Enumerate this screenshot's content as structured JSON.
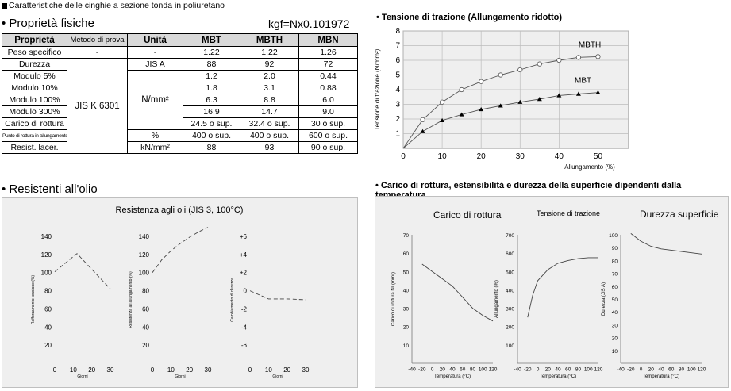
{
  "header": {
    "title": "Caratteristiche delle cinghie a sezione tonda in poliuretano"
  },
  "props_section": {
    "title": "Proprietà fisiche",
    "unit_note": "kgf=Nx0.101972"
  },
  "table": {
    "headers": [
      "Proprietà",
      "Metodo di prova",
      "Unità",
      "MBT",
      "MBTH",
      "MBN"
    ],
    "method_jis": "JIS  K  6301",
    "unit_mpa": "N/mm²",
    "rows": [
      {
        "prop": "Peso specifico",
        "method": "-",
        "unit": "-",
        "mbt": "1.22",
        "mbth": "1.22",
        "mbn": "1.26"
      },
      {
        "prop": "Durezza",
        "unit": "JIS A",
        "mbt": "88",
        "mbth": "92",
        "mbn": "72"
      },
      {
        "prop": "Modulo 5%",
        "mbt": "1.2",
        "mbth": "2.0",
        "mbn": "0.44"
      },
      {
        "prop": "Modulo 10%",
        "mbt": "1.8",
        "mbth": "3.1",
        "mbn": "0.88"
      },
      {
        "prop": "Modulo 100%",
        "mbt": "6.3",
        "mbth": "8.8",
        "mbn": "6.0"
      },
      {
        "prop": "Modulo 300%",
        "mbt": "16.9",
        "mbth": "14.7",
        "mbn": "9.0"
      },
      {
        "prop": "Carico di rottura",
        "mbt": "24.5 o sup.",
        "mbth": "32.4 o sup.",
        "mbn": "30 o sup."
      },
      {
        "prop": "Punto di rottura in allungamento",
        "unit": "%",
        "mbt": "400 o sup.",
        "mbth": "400 o sup.",
        "mbn": "600 o sup."
      },
      {
        "prop": "Resist. lacer.",
        "unit": "kN/mm²",
        "mbt": "88",
        "mbth": "93",
        "mbn": "90 o sup."
      }
    ]
  },
  "oil_section": {
    "title": "Resistenti all'olio",
    "panel_title": "Resistenza agli oli (JIS 3, 100°C)"
  },
  "temp_section": {
    "title": "Carico di rottura, estensibilità e durezza della superficie dipendenti dalla temperatura",
    "sub1": "Carico di rottura",
    "sub2": "Tensione di trazione",
    "sub3": "Durezza superficie"
  },
  "chart_data": [
    {
      "id": "tensile",
      "type": "line",
      "title": "Tensione di trazione (Allungamento ridotto)",
      "xlabel": "Allungamento (%)",
      "ylabel": "Tensione di trazione (N/mm²)",
      "xlim": [
        0,
        55
      ],
      "ylim": [
        0,
        8
      ],
      "xticks": [
        0,
        10,
        20,
        30,
        40,
        50
      ],
      "yticks": [
        1,
        2,
        3,
        4,
        5,
        6,
        7,
        8
      ],
      "series": [
        {
          "name": "MBTH",
          "marker": "circle",
          "x": [
            0,
            5,
            10,
            15,
            20,
            25,
            30,
            35,
            40,
            45,
            50
          ],
          "y": [
            0,
            1.95,
            3.15,
            4.0,
            4.55,
            5.0,
            5.35,
            5.75,
            6.0,
            6.2,
            6.25
          ]
        },
        {
          "name": "MBT",
          "marker": "triangle",
          "x": [
            0,
            5,
            10,
            15,
            20,
            25,
            30,
            35,
            40,
            45,
            50
          ],
          "y": [
            0,
            1.15,
            1.9,
            2.3,
            2.65,
            2.9,
            3.15,
            3.35,
            3.6,
            3.7,
            3.8
          ]
        }
      ]
    },
    {
      "id": "oil1",
      "type": "line",
      "xlabel": "Giorni",
      "ylabel": "Rafforzamento tensione (%)",
      "xlim": [
        0,
        30
      ],
      "ylim": [
        0,
        140
      ],
      "xticks": [
        0,
        10,
        20,
        30
      ],
      "yticks": [
        0,
        20,
        40,
        60,
        80,
        100,
        120,
        140
      ],
      "ytick_labels": [
        "",
        "20",
        "40",
        "60",
        "80",
        "100",
        "120",
        "140"
      ],
      "series": [
        {
          "name": "",
          "dashed": true,
          "x": [
            0,
            12,
            30
          ],
          "y": [
            101,
            121,
            82
          ]
        }
      ]
    },
    {
      "id": "oil2",
      "type": "line",
      "xlabel": "Giorni",
      "ylabel": "Resistenza all'allungamento (%)",
      "xlim": [
        0,
        30
      ],
      "ylim": [
        0,
        140
      ],
      "xticks": [
        0,
        10,
        20,
        30
      ],
      "yticks": [
        0,
        20,
        40,
        60,
        80,
        100,
        120,
        140
      ],
      "ytick_labels": [
        "",
        "20",
        "40",
        "60",
        "80",
        "100",
        "120",
        "140"
      ],
      "series": [
        {
          "name": "",
          "dashed": true,
          "x": [
            0,
            5,
            10,
            15,
            20,
            25,
            30
          ],
          "y": [
            100,
            114,
            124,
            132,
            139,
            145,
            150
          ]
        }
      ]
    },
    {
      "id": "oil3",
      "type": "line",
      "xlabel": "Giorni",
      "ylabel": "Cambiamento di durezza",
      "xlim": [
        0,
        30
      ],
      "ylim": [
        -8,
        6
      ],
      "xticks": [
        0,
        10,
        20,
        30
      ],
      "yticks": [
        6,
        4,
        2,
        0,
        -2,
        -4,
        -6
      ],
      "ytick_labels": [
        "+6",
        "+4",
        "+2",
        "0",
        "-2",
        "-4",
        "-6"
      ],
      "series": [
        {
          "name": "",
          "dashed": true,
          "x": [
            0,
            10,
            20,
            30
          ],
          "y": [
            0,
            -0.9,
            -0.9,
            -1.0
          ]
        }
      ]
    },
    {
      "id": "temp1",
      "type": "line",
      "xlabel": "Temperatura (°C)",
      "ylabel": "Carico di rottura N/ (mm²)",
      "xlim": [
        -40,
        120
      ],
      "ylim": [
        0,
        70
      ],
      "xticks": [
        -40,
        -20,
        0,
        20,
        40,
        60,
        80,
        100,
        120
      ],
      "xtick_labels": [
        "-40",
        "-20",
        "0",
        "20",
        "40",
        "60",
        "80",
        "100",
        "120"
      ],
      "yticks": [
        10,
        20,
        30,
        40,
        50,
        60,
        70
      ],
      "series": [
        {
          "name": "",
          "x": [
            -20,
            0,
            20,
            40,
            60,
            80,
            100,
            120
          ],
          "y": [
            54,
            50,
            46,
            42,
            36,
            30,
            26,
            23
          ]
        }
      ]
    },
    {
      "id": "temp2",
      "type": "line",
      "xlabel": "Temperatura (°C)",
      "ylabel": "Allungamento (%)",
      "xlim": [
        -40,
        120
      ],
      "ylim": [
        0,
        700
      ],
      "xticks": [
        -40,
        -20,
        0,
        20,
        40,
        60,
        80,
        100,
        120
      ],
      "xtick_labels": [
        "-40",
        "-20",
        "0",
        "20",
        "40",
        "60",
        "80",
        "100",
        "120"
      ],
      "yticks": [
        100,
        200,
        300,
        400,
        500,
        600,
        700
      ],
      "series": [
        {
          "name": "",
          "x": [
            -20,
            -10,
            0,
            20,
            40,
            60,
            80,
            100,
            120
          ],
          "y": [
            250,
            370,
            450,
            510,
            545,
            560,
            570,
            575,
            575
          ]
        }
      ]
    },
    {
      "id": "temp3",
      "type": "line",
      "xlabel": "Temperatura (°C)",
      "ylabel": "Durezza (JIS A)",
      "xlim": [
        -40,
        120
      ],
      "ylim": [
        0,
        100
      ],
      "xticks": [
        -40,
        -20,
        0,
        20,
        40,
        60,
        80,
        100,
        120
      ],
      "xtick_labels": [
        "-40",
        "-20",
        "0",
        "20",
        "40",
        "60",
        "80",
        "100",
        "120"
      ],
      "yticks": [
        10,
        20,
        30,
        40,
        50,
        60,
        70,
        80,
        90,
        100
      ],
      "series": [
        {
          "name": "",
          "x": [
            -20,
            0,
            20,
            40,
            60,
            80,
            100,
            120
          ],
          "y": [
            101,
            95,
            91,
            89,
            88,
            87,
            86,
            85
          ]
        }
      ]
    }
  ]
}
